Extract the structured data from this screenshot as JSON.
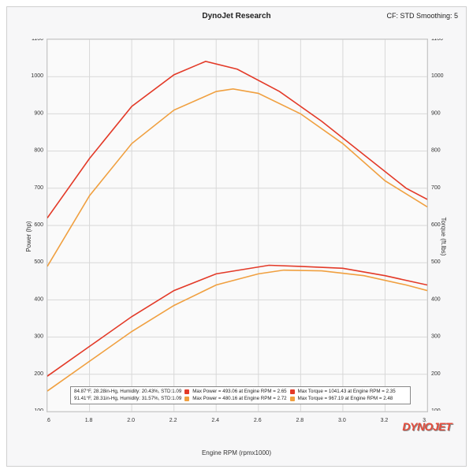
{
  "chart": {
    "type": "line",
    "title": "DynoJet Research",
    "subtitle_right": "CF: STD Smoothing: 5",
    "watermark": "DYNOJET",
    "background_color": "#f7f7f8",
    "plot_bg": "#fafafa",
    "grid_color": "#d8d8d8",
    "border_color": "#c8c8c8",
    "x_axis": {
      "label": "Engine RPM (rpmx1000)",
      "min": 1.6,
      "max": 3.4,
      "tick_step": 0.2,
      "label_fontsize": 8,
      "tick_fontsize": 7
    },
    "y_left": {
      "label": "Power (hp)",
      "min": 100,
      "max": 1100,
      "tick_step": 100,
      "label_fontsize": 8,
      "tick_fontsize": 7
    },
    "y_right": {
      "label": "Torque (ft.lbs)",
      "min": 100,
      "max": 1100,
      "tick_step": 100,
      "label_fontsize": 8,
      "tick_fontsize": 7
    },
    "series": [
      {
        "name": "torque_run1",
        "color": "#e33a28",
        "axis": "right",
        "line_width": 1.6,
        "x": [
          1.6,
          1.8,
          2.0,
          2.2,
          2.35,
          2.5,
          2.7,
          2.9,
          3.1,
          3.3,
          3.4
        ],
        "y": [
          620,
          780,
          920,
          1005,
          1041,
          1020,
          960,
          880,
          790,
          700,
          670
        ]
      },
      {
        "name": "torque_run2",
        "color": "#f0a040",
        "axis": "right",
        "line_width": 1.6,
        "x": [
          1.6,
          1.8,
          2.0,
          2.2,
          2.4,
          2.48,
          2.6,
          2.8,
          3.0,
          3.2,
          3.4
        ],
        "y": [
          490,
          680,
          820,
          910,
          960,
          967,
          955,
          900,
          820,
          720,
          650
        ]
      },
      {
        "name": "power_run1",
        "color": "#e33a28",
        "axis": "left",
        "line_width": 1.6,
        "x": [
          1.6,
          1.8,
          2.0,
          2.2,
          2.4,
          2.65,
          2.8,
          3.0,
          3.2,
          3.4
        ],
        "y": [
          195,
          275,
          355,
          425,
          470,
          493,
          490,
          485,
          465,
          440
        ]
      },
      {
        "name": "power_run2",
        "color": "#f0a040",
        "axis": "left",
        "line_width": 1.6,
        "x": [
          1.6,
          1.8,
          2.0,
          2.2,
          2.4,
          2.6,
          2.72,
          2.9,
          3.1,
          3.3,
          3.4
        ],
        "y": [
          155,
          235,
          315,
          385,
          440,
          470,
          480,
          478,
          465,
          440,
          425
        ]
      }
    ],
    "legend": {
      "rows": [
        {
          "conditions": "84.87°F, 28.28in-Hg, Humidity: 20.43%, STD:1.09",
          "swatch_color": "#e33a28",
          "power_text": "Max Power = 493.06 at Engine RPM = 2.65",
          "torque_text": "Max Torque = 1041.43 at Engine RPM = 2.35"
        },
        {
          "conditions": "91.41°F, 28.31in-Hg, Humidity: 31.57%, STD:1.09",
          "swatch_color": "#f0a040",
          "power_text": "Max Power = 480.16 at Engine RPM = 2.72",
          "torque_text": "Max Torque = 967.19 at Engine RPM = 2.48"
        }
      ]
    }
  }
}
